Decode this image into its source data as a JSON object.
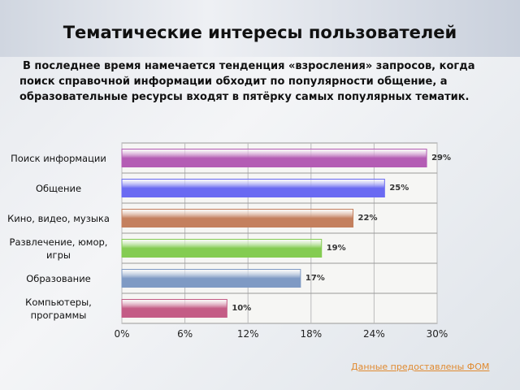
{
  "chart_data": {
    "type": "bar",
    "orientation": "horizontal",
    "title": "Тематические интересы пользователей",
    "subtitle": "В последнее время намечается тенденция «взросления» запросов, когда поиск справочной информации обходит по популярности общение, а образовательные ресурсы входят в пятёрку самых популярных тематик.",
    "source": "Данные предоставлены ФОМ",
    "categories": [
      "Поиск информации",
      "Общение",
      "Кино, видео, музыка",
      "Развлечение, юмор, игры",
      "Образование",
      "Компьютеры, программы"
    ],
    "values": [
      29,
      25,
      22,
      19,
      17,
      10
    ],
    "value_labels": [
      "29%",
      "25%",
      "22%",
      "19%",
      "17%",
      "10%"
    ],
    "colors": [
      "#b45cb4",
      "#6a6af2",
      "#c4805e",
      "#84cc52",
      "#7f9ac4",
      "#c45c86"
    ],
    "xlim": [
      0,
      30
    ],
    "xticks": [
      {
        "value": 0,
        "label": "0%"
      },
      {
        "value": 6,
        "label": "6%"
      },
      {
        "value": 12,
        "label": "12%"
      },
      {
        "value": 18,
        "label": "18%"
      },
      {
        "value": 24,
        "label": "24%"
      },
      {
        "value": 30,
        "label": "30%"
      }
    ],
    "grid": true
  }
}
